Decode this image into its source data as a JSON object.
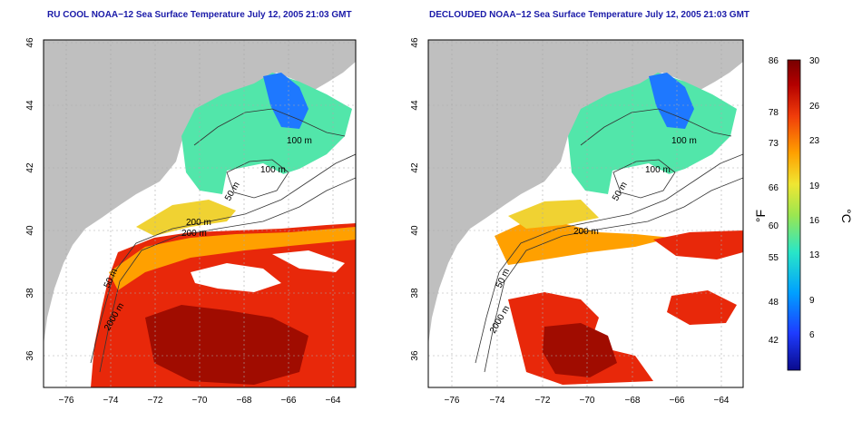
{
  "maps": [
    {
      "name": "left",
      "title": "RU COOL NOAA−12 Sea Surface Temperature July 12, 2005 21:03 GMT",
      "contour_labels": [
        "100 m",
        "100 m",
        "50 m",
        "200 m",
        "50 m",
        "2000 m",
        "200 m"
      ]
    },
    {
      "name": "right",
      "title": "DECLOUDED NOAA−12 Sea Surface Temperature July 12, 2005 21:03 GMT",
      "contour_labels": [
        "100 m",
        "100 m",
        "50 m",
        "200 m",
        "50 m",
        "2000 m"
      ]
    }
  ],
  "lon_ticks": [
    "−76",
    "−74",
    "−72",
    "−70",
    "−68",
    "−66",
    "−64"
  ],
  "lat_ticks": [
    "46",
    "44",
    "42",
    "40",
    "38",
    "36"
  ],
  "colorbar": {
    "fahrenheit_label": "°F",
    "celsius_label": "°C",
    "fahrenheit_ticks": [
      "86",
      "78",
      "73",
      "66",
      "60",
      "55",
      "48",
      "42"
    ],
    "celsius_ticks": [
      "30",
      "26",
      "23",
      "19",
      "16",
      "13",
      "9",
      "6"
    ],
    "colors": [
      "#0a0a8c",
      "#1e3cff",
      "#00a0ff",
      "#28e6c8",
      "#9be650",
      "#f0e632",
      "#ffa000",
      "#f03c0a",
      "#b40000",
      "#780000"
    ]
  },
  "colors": {
    "land": "#bfbfbf",
    "title": "#1a1aa8"
  }
}
